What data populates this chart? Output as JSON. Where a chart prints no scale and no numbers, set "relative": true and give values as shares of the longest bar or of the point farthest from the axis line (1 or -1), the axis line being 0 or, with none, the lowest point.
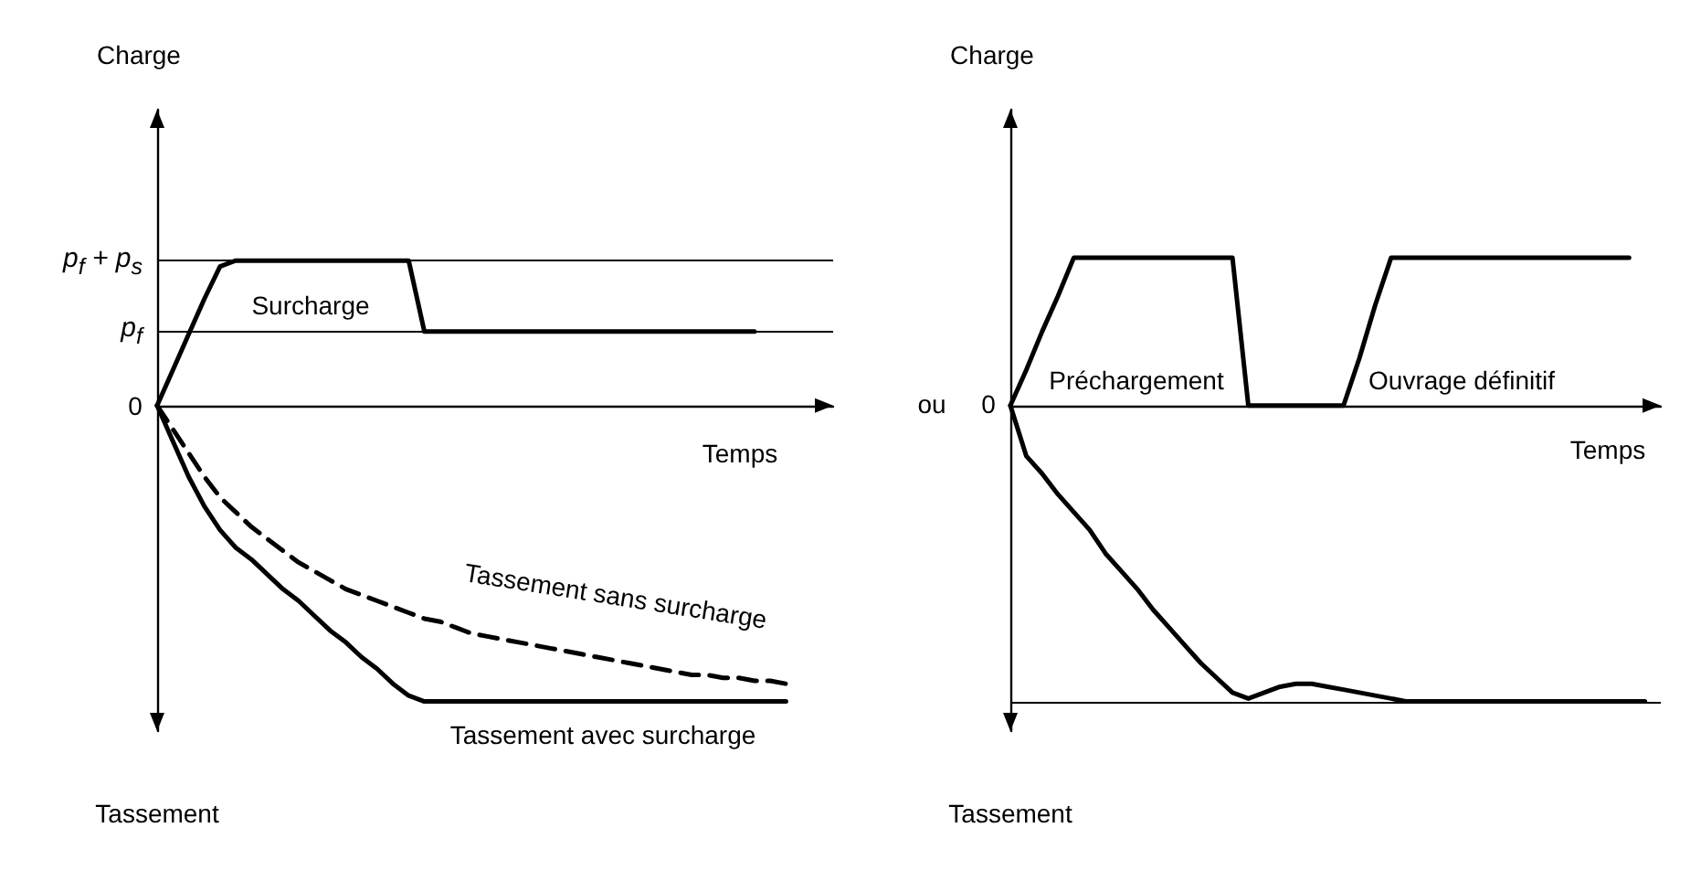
{
  "chart_data": [
    {
      "type": "line",
      "relative": true,
      "ylabel": "Charge",
      "xlabel": "Temps",
      "marker": "none",
      "categories": [
        null,
        null,
        null,
        null,
        null,
        null,
        null,
        null,
        null,
        null,
        null,
        null,
        null,
        null,
        null,
        null,
        null,
        null,
        null,
        null,
        null,
        null,
        null,
        null,
        null,
        null,
        null,
        null,
        null,
        null,
        null,
        null,
        null,
        null,
        null,
        null,
        null,
        null,
        null,
        null,
        null,
        null,
        null,
        null
      ],
      "series": [
        {
          "color": "#000000",
          "line_style": "solid",
          "values": [
            0,
            0.12,
            0.24,
            0.36,
            0.47,
            0.49,
            0.49,
            0.49,
            0.49,
            0.49,
            0.49,
            0.49,
            0.49,
            0.49,
            0.49,
            0.49,
            0.49,
            0.25,
            0.25,
            0.25,
            0.25,
            0.25,
            0.25,
            0.25,
            0.25,
            0.25,
            0.25,
            0.25,
            0.25,
            0.25,
            0.25,
            0.25,
            0.25,
            0.25,
            0.25,
            0.25,
            0.25,
            0.25,
            0.25,
            null,
            null,
            null,
            null,
            null
          ]
        },
        {
          "color": "#000000",
          "line_style": "solid",
          "values": [
            0,
            -0.12,
            -0.24,
            -0.34,
            -0.42,
            -0.48,
            -0.52,
            -0.57,
            -0.62,
            -0.66,
            -0.71,
            -0.76,
            -0.8,
            -0.85,
            -0.89,
            -0.94,
            -0.98,
            -1,
            -1,
            -1,
            -1,
            -1,
            -1,
            -1,
            -1,
            -1,
            -1,
            -1,
            -1,
            -1,
            -1,
            -1,
            -1,
            -1,
            -1,
            -1,
            -1,
            -1,
            -1,
            -1,
            -1,
            null,
            null,
            null
          ]
        },
        {
          "color": "#000000",
          "line_style": "dashed",
          "values": [
            0,
            -0.08,
            -0.16,
            -0.24,
            -0.31,
            -0.36,
            -0.41,
            -0.45,
            -0.49,
            -0.53,
            -0.56,
            -0.59,
            -0.62,
            -0.64,
            -0.66,
            -0.68,
            -0.7,
            -0.72,
            -0.73,
            -0.75,
            -0.77,
            -0.78,
            -0.79,
            -0.8,
            -0.81,
            -0.82,
            -0.83,
            -0.84,
            -0.85,
            -0.86,
            -0.87,
            -0.88,
            -0.89,
            -0.9,
            -0.91,
            -0.91,
            -0.92,
            -0.92,
            -0.93,
            -0.93,
            -0.94,
            null,
            null,
            null
          ]
        }
      ],
      "ref_lines": [
        {
          "axis": "y",
          "value": 0.49,
          "color": "#000000",
          "label": "p$_{f}$ + p$_{s}$"
        },
        {
          "axis": "y",
          "value": 0.25,
          "color": "#000000",
          "label": "p$_{f}$"
        }
      ],
      "annotations": [
        "0",
        "Surcharge",
        "Tassement sans surcharge",
        "Tassement avec surcharge",
        "Tassement"
      ]
    },
    {
      "type": "line",
      "relative": true,
      "ylabel": "Charge",
      "xlabel": "Temps",
      "marker": "none",
      "categories": [
        null,
        null,
        null,
        null,
        null,
        null,
        null,
        null,
        null,
        null,
        null,
        null,
        null,
        null,
        null,
        null,
        null,
        null,
        null,
        null,
        null,
        null,
        null,
        null,
        null,
        null,
        null,
        null,
        null,
        null,
        null,
        null,
        null,
        null,
        null,
        null,
        null,
        null,
        null,
        null,
        null,
        null
      ],
      "series": [
        {
          "color": "#000000",
          "line_style": "solid",
          "values": [
            0,
            0.12,
            0.25,
            0.37,
            0.5,
            0.5,
            0.5,
            0.5,
            0.5,
            0.5,
            0.5,
            0.5,
            0.5,
            0.5,
            0.5,
            0,
            0,
            0,
            0,
            0,
            0,
            0,
            0.16,
            0.34,
            0.5,
            0.5,
            0.5,
            0.5,
            0.5,
            0.5,
            0.5,
            0.5,
            0.5,
            0.5,
            0.5,
            0.5,
            0.5,
            0.5,
            0.5,
            0.5,
            null,
            null
          ]
        },
        {
          "color": "#000000",
          "line_style": "solid",
          "values": [
            0,
            -0.17,
            -0.23,
            -0.3,
            -0.36,
            -0.42,
            -0.5,
            -0.56,
            -0.62,
            -0.69,
            -0.75,
            -0.81,
            -0.87,
            -0.92,
            -0.97,
            -0.99,
            -0.97,
            -0.95,
            -0.94,
            -0.94,
            -0.95,
            -0.96,
            -0.97,
            -0.98,
            -0.99,
            -1,
            -1,
            -1,
            -1,
            -1,
            -1,
            -1,
            -1,
            -1,
            -1,
            -1,
            -1,
            -1,
            -1,
            -1,
            -1,
            null
          ]
        }
      ],
      "ref_lines": [
        {
          "axis": "y",
          "value": -1,
          "color": "#000000"
        }
      ],
      "annotations": [
        "0",
        "ou",
        "Préchargement",
        "Ouvrage définitif",
        "Tassement"
      ]
    }
  ]
}
